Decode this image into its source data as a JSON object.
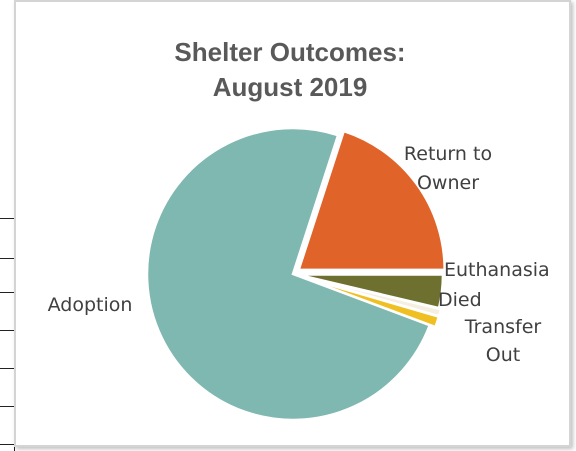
{
  "chart_data": {
    "type": "pie",
    "title_lines": [
      "Shelter Outcomes:",
      "August 2019"
    ],
    "slices": [
      {
        "label": "Return to Owner",
        "label_lines": [
          "Return to",
          "Owner"
        ],
        "value": 20.0,
        "color": "#e0632a"
      },
      {
        "label": "Euthanasia",
        "label_lines": [
          "Euthanasia"
        ],
        "value": 3.7,
        "color": "#6e7030"
      },
      {
        "label": "Died",
        "label_lines": [
          "Died"
        ],
        "value": 0.8,
        "color": "#f4efe1"
      },
      {
        "label": "Transfer Out",
        "label_lines": [
          "Transfer",
          "Out"
        ],
        "value": 1.2,
        "color": "#f0c022"
      },
      {
        "label": "Adoption",
        "label_lines": [
          "Adoption"
        ],
        "value": 74.3,
        "color": "#7eb8b0"
      }
    ],
    "start_angle_deg": 0,
    "legend": "none"
  }
}
